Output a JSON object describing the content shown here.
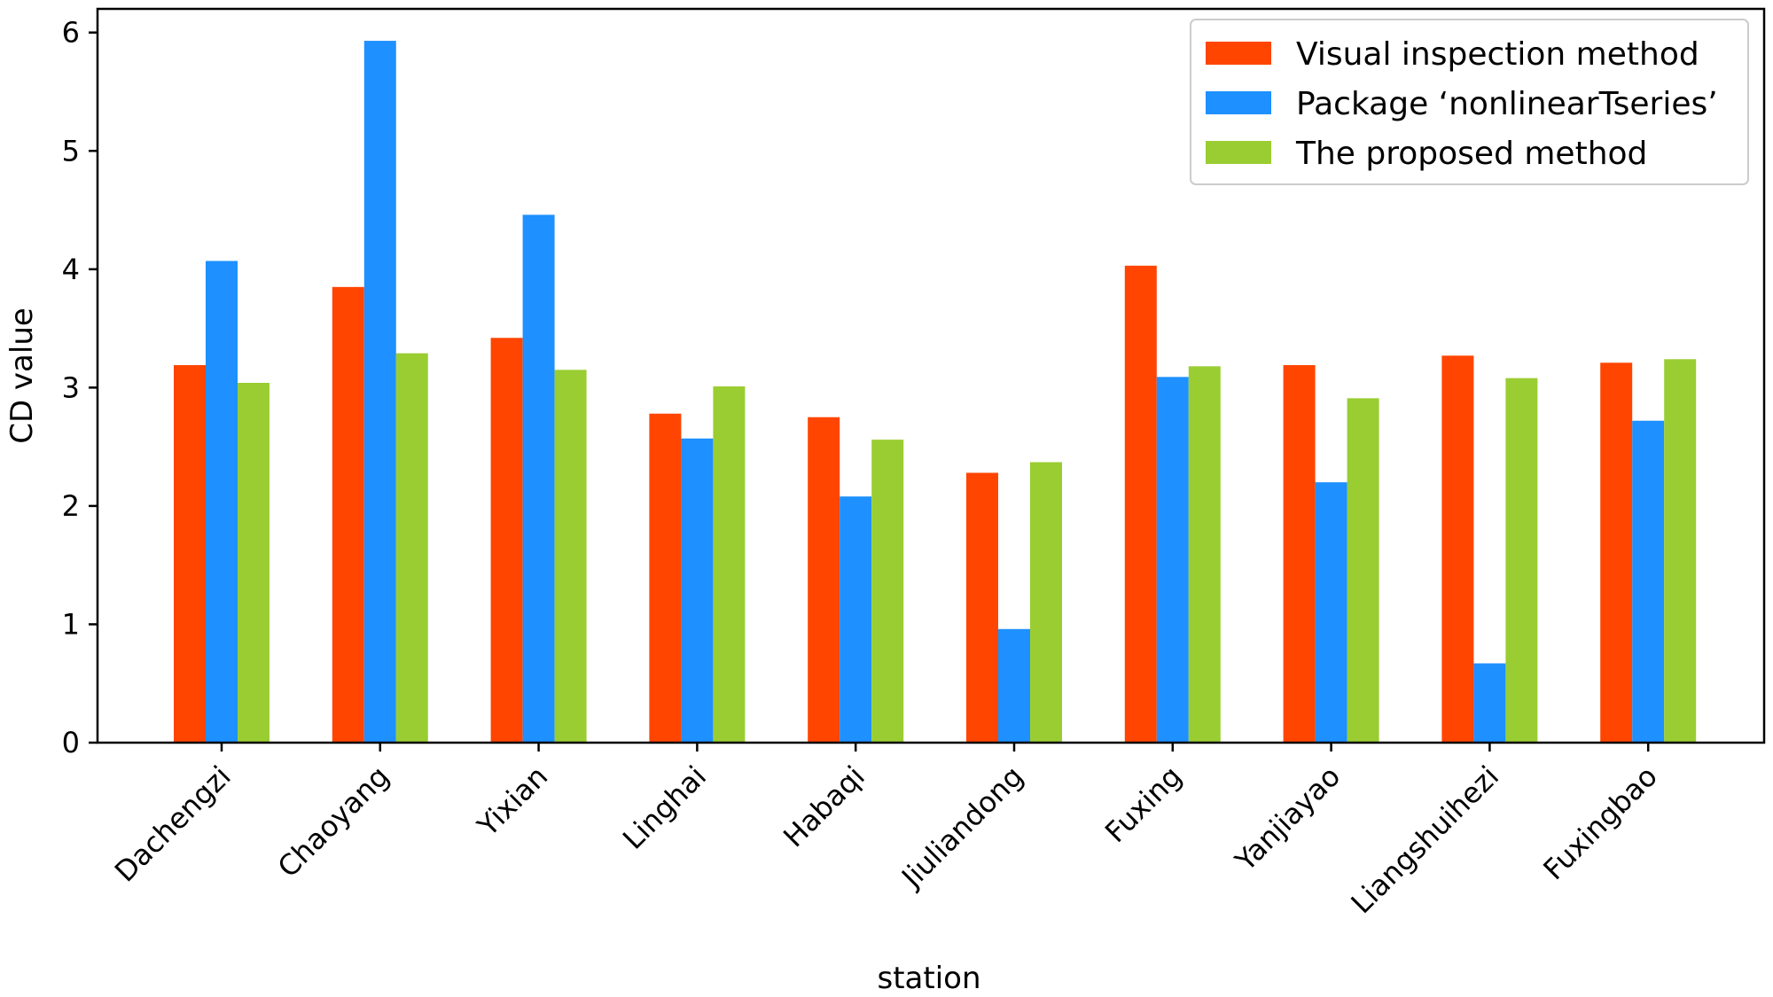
{
  "chart_data": {
    "type": "bar",
    "title": "",
    "xlabel": "station",
    "ylabel": "CD value",
    "ylim": [
      0,
      6.2
    ],
    "yticks": [
      0,
      1,
      2,
      3,
      4,
      5,
      6
    ],
    "grid": false,
    "legend_position": "top-right",
    "categories": [
      "Dachengzi",
      "Chaoyang",
      "Yixian",
      "Linghai",
      "Habaqi",
      "Jiuliandong",
      "Fuxing",
      "Yanjiayao",
      "Liangshuihezi",
      "Fuxingbao"
    ],
    "series": [
      {
        "name": "Visual inspection method",
        "color": "#ff4500",
        "values": [
          3.19,
          3.85,
          3.42,
          2.78,
          2.75,
          2.28,
          4.03,
          3.19,
          3.27,
          3.21
        ]
      },
      {
        "name": "Package ‘nonlinearTseries’",
        "color": "#1e90ff",
        "values": [
          4.07,
          5.93,
          4.46,
          2.57,
          2.08,
          0.96,
          3.09,
          2.2,
          0.67,
          2.72
        ]
      },
      {
        "name": "The proposed method",
        "color": "#9acd32",
        "values": [
          3.04,
          3.29,
          3.15,
          3.01,
          2.56,
          2.37,
          3.18,
          2.91,
          3.08,
          3.24
        ]
      }
    ]
  }
}
